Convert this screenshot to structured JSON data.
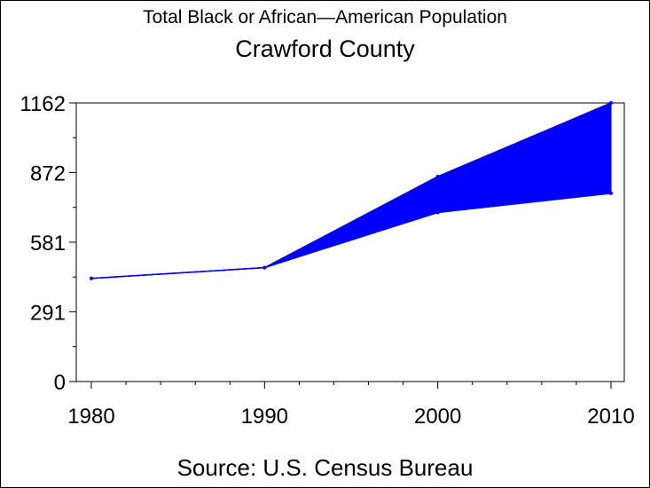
{
  "chart_data": {
    "type": "area",
    "title": "Total Black or African—American Population",
    "subtitle": "Crawford County",
    "source": "Source: U.S. Census Bureau",
    "x": [
      1980,
      1990,
      2000,
      2010
    ],
    "x_tick_labels": [
      "1980",
      "1990",
      "2000",
      "2010"
    ],
    "y_tick_values": [
      0,
      291,
      581,
      872,
      1162
    ],
    "y_tick_labels": [
      "0",
      "291",
      "581",
      "872",
      "1162"
    ],
    "ylim": [
      0,
      1162
    ],
    "xlim": [
      1980,
      2010
    ],
    "series": [
      {
        "values": [
          430,
          475,
          855,
          1162
        ]
      },
      {
        "values": [
          430,
          475,
          705,
          785
        ]
      }
    ],
    "color": "#0000ff",
    "grid": false
  }
}
